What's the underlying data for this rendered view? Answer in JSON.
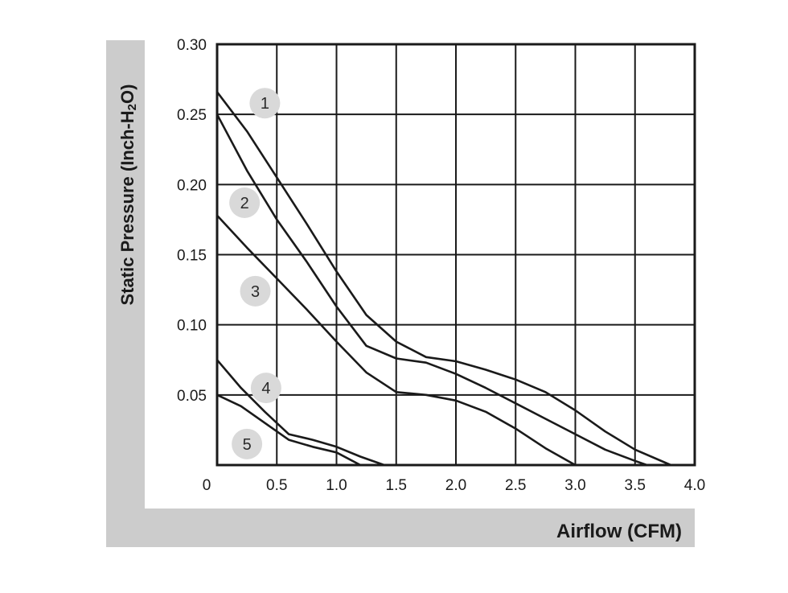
{
  "chart_data": {
    "type": "line",
    "title": "",
    "xlabel": "Airflow (CFM)",
    "ylabel_main": "Static Pressure (Inch-H",
    "ylabel_sub": "2",
    "ylabel_end": "O)",
    "xlim": [
      0,
      4.0
    ],
    "ylim": [
      0,
      0.3
    ],
    "x_ticks": [
      0,
      0.5,
      1.0,
      1.5,
      2.0,
      2.5,
      3.0,
      3.5,
      4.0
    ],
    "x_tick_labels": [
      "0",
      "0.5",
      "1.0",
      "1.5",
      "2.0",
      "2.5",
      "3.0",
      "3.5",
      "4.0"
    ],
    "y_ticks": [
      0.05,
      0.1,
      0.15,
      0.2,
      0.25,
      0.3
    ],
    "y_tick_labels": [
      "0.05",
      "0.10",
      "0.15",
      "0.20",
      "0.25",
      "0.30"
    ],
    "grid": true,
    "legend": "numbered circle badges next to curves",
    "series": [
      {
        "name": "1",
        "label_x": 0.4,
        "label_y": 0.258,
        "x": [
          0,
          0.25,
          0.5,
          0.75,
          1.0,
          1.25,
          1.5,
          1.75,
          2.0,
          2.25,
          2.5,
          2.75,
          3.0,
          3.25,
          3.5,
          3.8
        ],
        "y": [
          0.266,
          0.238,
          0.205,
          0.172,
          0.138,
          0.107,
          0.088,
          0.077,
          0.074,
          0.068,
          0.061,
          0.052,
          0.039,
          0.024,
          0.011,
          0.0
        ]
      },
      {
        "name": "2",
        "label_x": 0.23,
        "label_y": 0.187,
        "x": [
          0,
          0.25,
          0.5,
          0.75,
          1.0,
          1.25,
          1.5,
          1.75,
          2.0,
          2.25,
          2.5,
          2.75,
          3.0,
          3.25,
          3.5,
          3.6
        ],
        "y": [
          0.25,
          0.21,
          0.175,
          0.145,
          0.113,
          0.085,
          0.076,
          0.073,
          0.065,
          0.055,
          0.044,
          0.033,
          0.022,
          0.011,
          0.003,
          0.0
        ]
      },
      {
        "name": "3",
        "label_x": 0.32,
        "label_y": 0.124,
        "x": [
          0,
          0.25,
          0.5,
          0.75,
          1.0,
          1.25,
          1.5,
          1.75,
          2.0,
          2.25,
          2.5,
          2.75,
          3.0
        ],
        "y": [
          0.178,
          0.155,
          0.133,
          0.111,
          0.088,
          0.066,
          0.052,
          0.05,
          0.046,
          0.038,
          0.026,
          0.012,
          0.0
        ]
      },
      {
        "name": "4",
        "label_x": 0.41,
        "label_y": 0.055,
        "x": [
          0,
          0.2,
          0.4,
          0.6,
          0.8,
          1.0,
          1.2,
          1.4
        ],
        "y": [
          0.075,
          0.055,
          0.038,
          0.022,
          0.018,
          0.013,
          0.006,
          0.0
        ]
      },
      {
        "name": "5",
        "label_x": 0.25,
        "label_y": 0.015,
        "x": [
          0,
          0.2,
          0.4,
          0.6,
          0.8,
          1.0,
          1.2
        ],
        "y": [
          0.05,
          0.042,
          0.03,
          0.018,
          0.013,
          0.009,
          0.0
        ]
      }
    ]
  },
  "colors": {
    "frame_band": "#cccccc",
    "curve": "#1a1a1a",
    "grid": "#1a1a1a",
    "badge_fill": "#d9d9d9",
    "plot_bg": "#ffffff"
  }
}
